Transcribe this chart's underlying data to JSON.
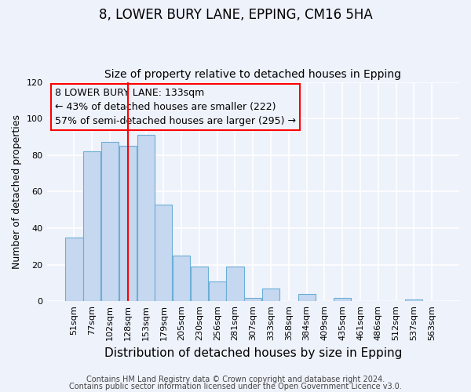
{
  "title": "8, LOWER BURY LANE, EPPING, CM16 5HA",
  "subtitle": "Size of property relative to detached houses in Epping",
  "xlabel": "Distribution of detached houses by size in Epping",
  "ylabel": "Number of detached properties",
  "bar_labels": [
    "51sqm",
    "77sqm",
    "102sqm",
    "128sqm",
    "153sqm",
    "179sqm",
    "205sqm",
    "230sqm",
    "256sqm",
    "281sqm",
    "307sqm",
    "333sqm",
    "358sqm",
    "384sqm",
    "409sqm",
    "435sqm",
    "461sqm",
    "486sqm",
    "512sqm",
    "537sqm",
    "563sqm"
  ],
  "bar_heights": [
    35,
    82,
    87,
    85,
    91,
    53,
    25,
    19,
    11,
    19,
    2,
    7,
    0,
    4,
    0,
    2,
    0,
    0,
    0,
    1,
    0
  ],
  "bar_color": "#c5d8f0",
  "bar_edge_color": "#6baed6",
  "vline_color": "red",
  "vline_x_index": 3,
  "annotation_line1": "8 LOWER BURY LANE: 133sqm",
  "annotation_line2": "← 43% of detached houses are smaller (222)",
  "annotation_line3": "57% of semi-detached houses are larger (295) →",
  "ylim": [
    0,
    120
  ],
  "yticks": [
    0,
    20,
    40,
    60,
    80,
    100,
    120
  ],
  "footer_line1": "Contains HM Land Registry data © Crown copyright and database right 2024.",
  "footer_line2": "Contains public sector information licensed under the Open Government Licence v3.0.",
  "bg_color": "#eef2fb",
  "title_fontsize": 12,
  "subtitle_fontsize": 10,
  "xlabel_fontsize": 11,
  "ylabel_fontsize": 9,
  "tick_fontsize": 8,
  "annotation_fontsize": 9,
  "footer_fontsize": 7
}
